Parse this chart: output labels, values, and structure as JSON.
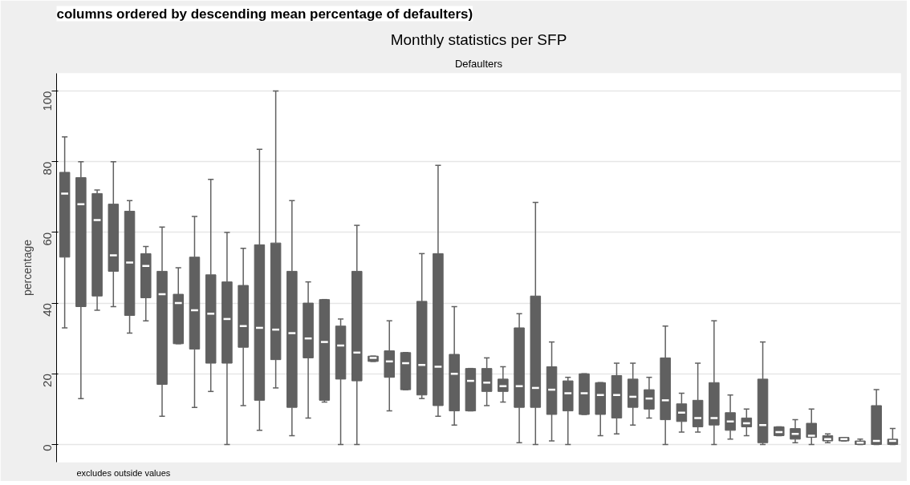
{
  "chart_data": {
    "type": "box",
    "title": "Monthly statistics per SFP",
    "subtitle": "Defaulters",
    "ylabel": "percentage",
    "annotations": [
      "columns ordered by descending mean percentage of defaulters)",
      "excludes outside values"
    ],
    "categories": [
      null,
      null,
      null,
      null,
      null,
      null,
      null,
      null,
      null,
      null,
      null,
      null,
      null,
      null,
      null,
      null,
      null,
      null,
      null,
      null,
      null,
      null,
      null,
      null,
      null,
      null,
      null,
      null,
      null,
      null,
      null,
      null,
      null,
      null,
      null,
      null,
      null,
      null,
      null,
      null,
      null,
      null,
      null,
      null,
      null,
      null,
      null,
      null,
      null,
      null,
      null,
      null
    ],
    "ylim": [
      -5,
      105
    ],
    "yticks": [
      0,
      20,
      40,
      60,
      80,
      100
    ],
    "grid": "y",
    "series": [
      {
        "color": "#606060",
        "boxes": [
          {
            "low": 33,
            "q1": 53,
            "median": 71,
            "q3": 77,
            "high": 87
          },
          {
            "low": 13,
            "q1": 39,
            "median": 68,
            "q3": 75.5,
            "high": 80
          },
          {
            "low": 38,
            "q1": 42,
            "median": 63.5,
            "q3": 71,
            "high": 72
          },
          {
            "low": 39,
            "q1": 49,
            "median": 53.5,
            "q3": 68,
            "high": 80
          },
          {
            "low": 31.5,
            "q1": 36.5,
            "median": 51.5,
            "q3": 66,
            "high": 69
          },
          {
            "low": 35,
            "q1": 41.5,
            "median": 50.5,
            "q3": 54,
            "high": 56
          },
          {
            "low": 8,
            "q1": 17,
            "median": 42.5,
            "q3": 49,
            "high": 61.5
          },
          {
            "low": 28.5,
            "q1": 28.5,
            "median": 40,
            "q3": 42.5,
            "high": 50
          },
          {
            "low": 10.5,
            "q1": 27,
            "median": 38,
            "q3": 53,
            "high": 64.5
          },
          {
            "low": 15,
            "q1": 23,
            "median": 37,
            "q3": 48,
            "high": 75
          },
          {
            "low": 0,
            "q1": 23,
            "median": 35.5,
            "q3": 46,
            "high": 60
          },
          {
            "low": 11,
            "q1": 27.5,
            "median": 33.5,
            "q3": 45,
            "high": 55.5
          },
          {
            "low": 4,
            "q1": 12.5,
            "median": 33,
            "q3": 56.5,
            "high": 83.5
          },
          {
            "low": 16,
            "q1": 24,
            "median": 32.5,
            "q3": 57,
            "high": 100
          },
          {
            "low": 2.5,
            "q1": 10.5,
            "median": 31.5,
            "q3": 49,
            "high": 69
          },
          {
            "low": 7.5,
            "q1": 24.5,
            "median": 30,
            "q3": 40,
            "high": 46
          },
          {
            "low": 12,
            "q1": 12.5,
            "median": 29,
            "q3": 41,
            "high": 41
          },
          {
            "low": 0,
            "q1": 18.5,
            "median": 28,
            "q3": 33.5,
            "high": 35.5
          },
          {
            "low": 0,
            "q1": 18,
            "median": 26,
            "q3": 49,
            "high": 62
          },
          {
            "low": 23.5,
            "q1": 23.5,
            "median": 24.5,
            "q3": 25,
            "high": 25
          },
          {
            "low": 9.5,
            "q1": 19,
            "median": 23.5,
            "q3": 26.5,
            "high": 35
          },
          {
            "low": 15.5,
            "q1": 15.5,
            "median": 23,
            "q3": 26,
            "high": 26
          },
          {
            "low": 13,
            "q1": 14,
            "median": 22.5,
            "q3": 40.5,
            "high": 54
          },
          {
            "low": 8,
            "q1": 11,
            "median": 22,
            "q3": 54,
            "high": 79
          },
          {
            "low": 5.5,
            "q1": 9.5,
            "median": 20,
            "q3": 25.5,
            "high": 39
          },
          {
            "low": 9.5,
            "q1": 9.5,
            "median": 18,
            "q3": 21.5,
            "high": 21.5
          },
          {
            "low": 11,
            "q1": 15,
            "median": 17.5,
            "q3": 21.5,
            "high": 24.5
          },
          {
            "low": 12,
            "q1": 15,
            "median": 16.5,
            "q3": 18.5,
            "high": 22
          },
          {
            "low": 0.5,
            "q1": 10.5,
            "median": 16.5,
            "q3": 33,
            "high": 37
          },
          {
            "low": 0,
            "q1": 10.5,
            "median": 16,
            "q3": 42,
            "high": 68.5
          },
          {
            "low": 1,
            "q1": 8.5,
            "median": 15.5,
            "q3": 22,
            "high": 29
          },
          {
            "low": 0,
            "q1": 9.5,
            "median": 14.5,
            "q3": 18,
            "high": 19
          },
          {
            "low": 8.5,
            "q1": 8.5,
            "median": 14.5,
            "q3": 20,
            "high": 20
          },
          {
            "low": 2.5,
            "q1": 8.5,
            "median": 14,
            "q3": 17.5,
            "high": 17.5
          },
          {
            "low": 3,
            "q1": 7.5,
            "median": 14,
            "q3": 19.5,
            "high": 23
          },
          {
            "low": 5.5,
            "q1": 10.5,
            "median": 13.5,
            "q3": 18.5,
            "high": 23
          },
          {
            "low": 7.5,
            "q1": 10,
            "median": 13,
            "q3": 15.5,
            "high": 19
          },
          {
            "low": 0,
            "q1": 7,
            "median": 12.5,
            "q3": 24.5,
            "high": 33.5
          },
          {
            "low": 3.5,
            "q1": 6.5,
            "median": 9,
            "q3": 11.5,
            "high": 14.5
          },
          {
            "low": 3.5,
            "q1": 5,
            "median": 7.5,
            "q3": 12.5,
            "high": 23
          },
          {
            "low": 0,
            "q1": 5.5,
            "median": 7.5,
            "q3": 17.5,
            "high": 35
          },
          {
            "low": 1.5,
            "q1": 4,
            "median": 6.5,
            "q3": 9,
            "high": 14
          },
          {
            "low": 2.5,
            "q1": 5,
            "median": 6,
            "q3": 7.5,
            "high": 10
          },
          {
            "low": 0,
            "q1": 0.5,
            "median": 5.5,
            "q3": 18.5,
            "high": 29
          },
          {
            "low": 2.5,
            "q1": 2.5,
            "median": 3.5,
            "q3": 5,
            "high": 5
          },
          {
            "low": 0.5,
            "q1": 1.5,
            "median": 3,
            "q3": 4.5,
            "high": 7
          },
          {
            "low": 0,
            "q1": 2,
            "median": 2.5,
            "q3": 6,
            "high": 10
          },
          {
            "low": 0.5,
            "q1": 1,
            "median": 1.5,
            "q3": 2.5,
            "high": 3
          },
          {
            "low": 1,
            "q1": 1,
            "median": 1.5,
            "q3": 2,
            "high": 2
          },
          {
            "low": 0,
            "q1": 0,
            "median": 0.5,
            "q3": 1,
            "high": 1.5
          },
          {
            "low": 0,
            "q1": 0,
            "median": 1,
            "q3": 11,
            "high": 15.5
          },
          {
            "low": 0,
            "q1": 0,
            "median": 1,
            "q3": 1.5,
            "high": 4.5
          }
        ]
      }
    ]
  }
}
